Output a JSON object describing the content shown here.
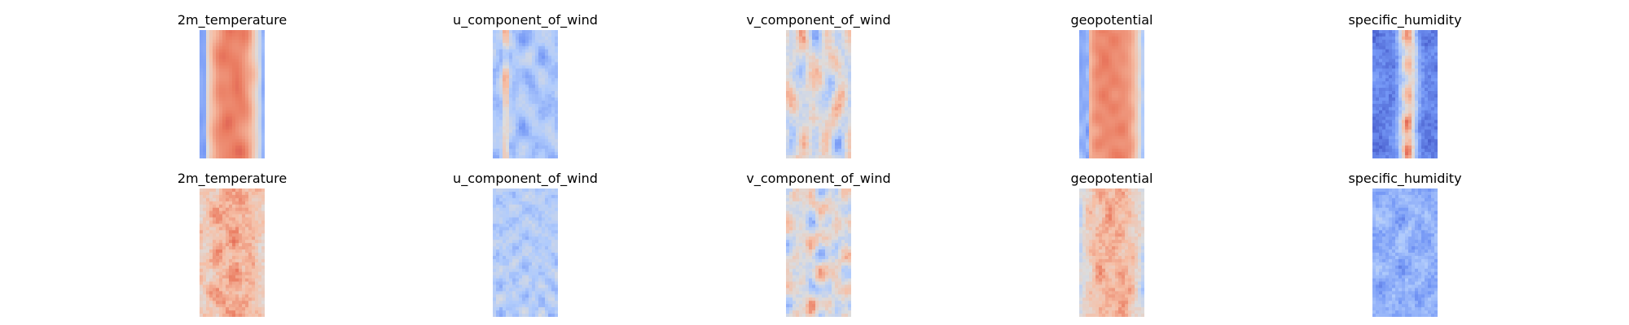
{
  "figure": {
    "background": "#ffffff",
    "colormap": "coolwarm",
    "colormap_stops": [
      "#3b4cc0",
      "#7396f5",
      "#b0cbfc",
      "#dddcdc",
      "#f6bfa6",
      "#ea7b60",
      "#b40426"
    ]
  },
  "chart_data": {
    "type": "heatmap",
    "grid": false,
    "axes_visible": false,
    "colormap": "coolwarm",
    "rows": 2,
    "cols": 5,
    "panels": [
      {
        "row": 0,
        "col": 0,
        "title": "2m_temperature",
        "pattern": "temp",
        "seed": 11
      },
      {
        "row": 0,
        "col": 1,
        "title": "u_component_of_wind",
        "pattern": "uwind",
        "seed": 23
      },
      {
        "row": 0,
        "col": 2,
        "title": "v_component_of_wind",
        "pattern": "vwind",
        "seed": 37
      },
      {
        "row": 0,
        "col": 3,
        "title": "geopotential",
        "pattern": "geo",
        "seed": 41
      },
      {
        "row": 0,
        "col": 4,
        "title": "specific_humidity",
        "pattern": "humid",
        "seed": 53
      },
      {
        "row": 1,
        "col": 0,
        "title": "2m_temperature",
        "pattern": "temp_noisy",
        "seed": 61
      },
      {
        "row": 1,
        "col": 1,
        "title": "u_component_of_wind",
        "pattern": "uwind_weak",
        "seed": 73
      },
      {
        "row": 1,
        "col": 2,
        "title": "v_component_of_wind",
        "pattern": "vwind",
        "seed": 89
      },
      {
        "row": 1,
        "col": 3,
        "title": "geopotential",
        "pattern": "geo_noisy",
        "seed": 97
      },
      {
        "row": 1,
        "col": 4,
        "title": "specific_humidity",
        "pattern": "humid_weak",
        "seed": 101
      }
    ]
  }
}
